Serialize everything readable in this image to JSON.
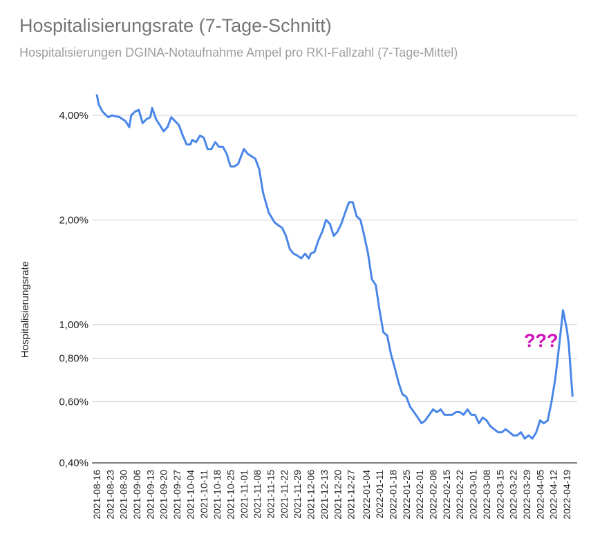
{
  "chart_data": {
    "type": "line",
    "title": "Hospitalisierungsrate (7-Tage-Schnitt)",
    "subtitle": "Hospitalisierungen DGINA-Notaufnahme Ampel pro RKI-Fallzahl (7-Tage-Mittel)",
    "ylabel": "Hospitalisierungsrate",
    "xlabel": "",
    "yscale": "log",
    "ylim": [
      0.39,
      4.7
    ],
    "yticks": [
      {
        "value": 0.4,
        "label": "0,40%"
      },
      {
        "value": 0.6,
        "label": "0,60%"
      },
      {
        "value": 0.8,
        "label": "0,80%"
      },
      {
        "value": 1.0,
        "label": "1,00%"
      },
      {
        "value": 2.0,
        "label": "2,00%"
      },
      {
        "value": 4.0,
        "label": "4,00%"
      }
    ],
    "xticks": [
      "2021-08-16",
      "2021-08-23",
      "2021-08-30",
      "2021-09-06",
      "2021-09-13",
      "2021-09-20",
      "2021-09-27",
      "2021-10-04",
      "2021-10-11",
      "2021-10-18",
      "2021-10-25",
      "2021-11-01",
      "2021-11-08",
      "2021-11-15",
      "2021-11-22",
      "2021-11-29",
      "2021-12-06",
      "2021-12-13",
      "2021-12-20",
      "2021-12-27",
      "2022-01-04",
      "2022-01-11",
      "2022-01-18",
      "2022-01-25",
      "2022-02-01",
      "2022-02-08",
      "2022-02-15",
      "2022-02-22",
      "2022-03-01",
      "2022-03-08",
      "2022-03-15",
      "2022-03-22",
      "2022-03-29",
      "2022-04-05",
      "2022-04-12",
      "2022-04-19"
    ],
    "grid": true,
    "legend": "none",
    "line_color": "#4a86e8",
    "annotation": {
      "text": "???",
      "color": "#d010b8"
    },
    "series": [
      {
        "values": [
          {
            "x": "2021-08-16",
            "y": 4.6
          },
          {
            "x": "2021-08-17",
            "y": 4.3
          },
          {
            "x": "2021-08-19",
            "y": 4.1
          },
          {
            "x": "2021-08-22",
            "y": 3.95
          },
          {
            "x": "2021-08-24",
            "y": 4.0
          },
          {
            "x": "2021-08-28",
            "y": 3.95
          },
          {
            "x": "2021-08-31",
            "y": 3.85
          },
          {
            "x": "2021-09-02",
            "y": 3.7
          },
          {
            "x": "2021-09-03",
            "y": 4.0
          },
          {
            "x": "2021-09-05",
            "y": 4.1
          },
          {
            "x": "2021-09-07",
            "y": 4.15
          },
          {
            "x": "2021-09-09",
            "y": 3.8
          },
          {
            "x": "2021-09-11",
            "y": 3.9
          },
          {
            "x": "2021-09-13",
            "y": 3.95
          },
          {
            "x": "2021-09-14",
            "y": 4.2
          },
          {
            "x": "2021-09-16",
            "y": 3.9
          },
          {
            "x": "2021-09-18",
            "y": 3.75
          },
          {
            "x": "2021-09-20",
            "y": 3.6
          },
          {
            "x": "2021-09-22",
            "y": 3.7
          },
          {
            "x": "2021-09-24",
            "y": 3.95
          },
          {
            "x": "2021-09-26",
            "y": 3.85
          },
          {
            "x": "2021-09-28",
            "y": 3.75
          },
          {
            "x": "2021-09-30",
            "y": 3.5
          },
          {
            "x": "2021-10-02",
            "y": 3.3
          },
          {
            "x": "2021-10-04",
            "y": 3.3
          },
          {
            "x": "2021-10-05",
            "y": 3.4
          },
          {
            "x": "2021-10-07",
            "y": 3.35
          },
          {
            "x": "2021-10-09",
            "y": 3.5
          },
          {
            "x": "2021-10-11",
            "y": 3.45
          },
          {
            "x": "2021-10-13",
            "y": 3.2
          },
          {
            "x": "2021-10-15",
            "y": 3.2
          },
          {
            "x": "2021-10-17",
            "y": 3.35
          },
          {
            "x": "2021-10-19",
            "y": 3.25
          },
          {
            "x": "2021-10-21",
            "y": 3.25
          },
          {
            "x": "2021-10-23",
            "y": 3.1
          },
          {
            "x": "2021-10-25",
            "y": 2.85
          },
          {
            "x": "2021-10-27",
            "y": 2.85
          },
          {
            "x": "2021-10-29",
            "y": 2.9
          },
          {
            "x": "2021-11-01",
            "y": 3.2
          },
          {
            "x": "2021-11-03",
            "y": 3.1
          },
          {
            "x": "2021-11-05",
            "y": 3.05
          },
          {
            "x": "2021-11-07",
            "y": 3.0
          },
          {
            "x": "2021-11-09",
            "y": 2.8
          },
          {
            "x": "2021-11-11",
            "y": 2.4
          },
          {
            "x": "2021-11-14",
            "y": 2.1
          },
          {
            "x": "2021-11-17",
            "y": 1.97
          },
          {
            "x": "2021-11-19",
            "y": 1.93
          },
          {
            "x": "2021-11-21",
            "y": 1.9
          },
          {
            "x": "2021-11-23",
            "y": 1.8
          },
          {
            "x": "2021-11-25",
            "y": 1.65
          },
          {
            "x": "2021-11-27",
            "y": 1.6
          },
          {
            "x": "2021-11-29",
            "y": 1.58
          },
          {
            "x": "2021-12-01",
            "y": 1.55
          },
          {
            "x": "2021-12-03",
            "y": 1.6
          },
          {
            "x": "2021-12-05",
            "y": 1.55
          },
          {
            "x": "2021-12-06",
            "y": 1.6
          },
          {
            "x": "2021-12-08",
            "y": 1.62
          },
          {
            "x": "2021-12-10",
            "y": 1.75
          },
          {
            "x": "2021-12-12",
            "y": 1.85
          },
          {
            "x": "2021-12-14",
            "y": 2.0
          },
          {
            "x": "2021-12-16",
            "y": 1.95
          },
          {
            "x": "2021-12-18",
            "y": 1.8
          },
          {
            "x": "2021-12-20",
            "y": 1.85
          },
          {
            "x": "2021-12-22",
            "y": 1.95
          },
          {
            "x": "2021-12-24",
            "y": 2.1
          },
          {
            "x": "2021-12-26",
            "y": 2.25
          },
          {
            "x": "2021-12-28",
            "y": 2.25
          },
          {
            "x": "2021-12-30",
            "y": 2.05
          },
          {
            "x": "2022-01-01",
            "y": 2.0
          },
          {
            "x": "2022-01-03",
            "y": 1.8
          },
          {
            "x": "2022-01-05",
            "y": 1.6
          },
          {
            "x": "2022-01-07",
            "y": 1.35
          },
          {
            "x": "2022-01-09",
            "y": 1.3
          },
          {
            "x": "2022-01-11",
            "y": 1.1
          },
          {
            "x": "2022-01-13",
            "y": 0.95
          },
          {
            "x": "2022-01-15",
            "y": 0.93
          },
          {
            "x": "2022-01-17",
            "y": 0.82
          },
          {
            "x": "2022-01-19",
            "y": 0.75
          },
          {
            "x": "2022-01-21",
            "y": 0.68
          },
          {
            "x": "2022-01-23",
            "y": 0.63
          },
          {
            "x": "2022-01-25",
            "y": 0.62
          },
          {
            "x": "2022-01-27",
            "y": 0.58
          },
          {
            "x": "2022-01-29",
            "y": 0.56
          },
          {
            "x": "2022-01-31",
            "y": 0.54
          },
          {
            "x": "2022-02-02",
            "y": 0.52
          },
          {
            "x": "2022-02-04",
            "y": 0.53
          },
          {
            "x": "2022-02-06",
            "y": 0.55
          },
          {
            "x": "2022-02-08",
            "y": 0.57
          },
          {
            "x": "2022-02-10",
            "y": 0.56
          },
          {
            "x": "2022-02-12",
            "y": 0.57
          },
          {
            "x": "2022-02-14",
            "y": 0.55
          },
          {
            "x": "2022-02-16",
            "y": 0.55
          },
          {
            "x": "2022-02-18",
            "y": 0.55
          },
          {
            "x": "2022-02-20",
            "y": 0.56
          },
          {
            "x": "2022-02-22",
            "y": 0.56
          },
          {
            "x": "2022-02-24",
            "y": 0.55
          },
          {
            "x": "2022-02-26",
            "y": 0.57
          },
          {
            "x": "2022-02-28",
            "y": 0.55
          },
          {
            "x": "2022-03-02",
            "y": 0.55
          },
          {
            "x": "2022-03-04",
            "y": 0.52
          },
          {
            "x": "2022-03-06",
            "y": 0.54
          },
          {
            "x": "2022-03-08",
            "y": 0.53
          },
          {
            "x": "2022-03-10",
            "y": 0.51
          },
          {
            "x": "2022-03-12",
            "y": 0.5
          },
          {
            "x": "2022-03-14",
            "y": 0.49
          },
          {
            "x": "2022-03-16",
            "y": 0.49
          },
          {
            "x": "2022-03-18",
            "y": 0.5
          },
          {
            "x": "2022-03-20",
            "y": 0.49
          },
          {
            "x": "2022-03-22",
            "y": 0.48
          },
          {
            "x": "2022-03-24",
            "y": 0.48
          },
          {
            "x": "2022-03-26",
            "y": 0.49
          },
          {
            "x": "2022-03-28",
            "y": 0.47
          },
          {
            "x": "2022-03-30",
            "y": 0.48
          },
          {
            "x": "2022-04-01",
            "y": 0.47
          },
          {
            "x": "2022-04-03",
            "y": 0.49
          },
          {
            "x": "2022-04-05",
            "y": 0.53
          },
          {
            "x": "2022-04-07",
            "y": 0.52
          },
          {
            "x": "2022-04-09",
            "y": 0.53
          },
          {
            "x": "2022-04-11",
            "y": 0.6
          },
          {
            "x": "2022-04-13",
            "y": 0.7
          },
          {
            "x": "2022-04-15",
            "y": 0.87
          },
          {
            "x": "2022-04-17",
            "y": 1.1
          },
          {
            "x": "2022-04-19",
            "y": 0.97
          },
          {
            "x": "2022-04-20",
            "y": 0.88
          },
          {
            "x": "2022-04-22",
            "y": 0.62
          }
        ]
      }
    ]
  }
}
